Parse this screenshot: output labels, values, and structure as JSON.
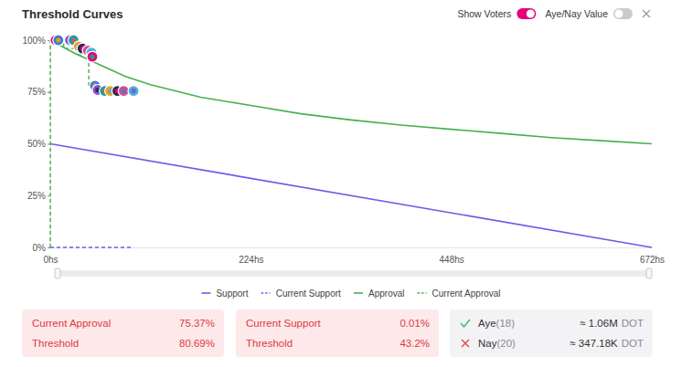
{
  "chart_data": {
    "type": "line",
    "title": "Threshold Curves",
    "xlim": [
      0,
      672
    ],
    "ylim": [
      0,
      100
    ],
    "xticks": [
      {
        "value": 0,
        "label": "0hs"
      },
      {
        "value": 224,
        "label": "224hs"
      },
      {
        "value": 448,
        "label": "448hs"
      },
      {
        "value": 672,
        "label": "672hs"
      }
    ],
    "yticks": [
      {
        "value": 0,
        "label": "0%"
      },
      {
        "value": 25,
        "label": "25%"
      },
      {
        "value": 50,
        "label": "50%"
      },
      {
        "value": 75,
        "label": "75%"
      },
      {
        "value": 100,
        "label": "100%"
      }
    ],
    "grid": false,
    "legend": "bottom",
    "series": [
      {
        "name": "Support",
        "color": "#6b5ce7",
        "line_style": "solid",
        "x": [
          0,
          672
        ],
        "values": [
          50,
          0
        ]
      },
      {
        "name": "Current Support",
        "color": "#6b5ce7",
        "line_style": "dashed",
        "x": [
          0,
          93
        ],
        "values": [
          0.01,
          0.01
        ]
      },
      {
        "name": "Approval",
        "color": "#46b04f",
        "line_style": "solid",
        "x": [
          0,
          28,
          56,
          84,
          112,
          168,
          224,
          280,
          336,
          392,
          448,
          504,
          560,
          616,
          672
        ],
        "values": [
          100,
          93.5,
          88,
          82.5,
          78.5,
          72.5,
          68.5,
          64.5,
          61.5,
          59,
          57,
          55,
          53,
          51.5,
          50
        ]
      },
      {
        "name": "Current Approval",
        "color": "#46b04f",
        "line_style": "dashed",
        "x": [
          0,
          0,
          15,
          15,
          30,
          30,
          43,
          43,
          93
        ],
        "values": [
          0,
          100,
          100,
          96,
          96,
          93,
          93,
          78,
          75.37
        ]
      },
      {
        "type": "scatter",
        "marker": "circle",
        "x": [
          6,
          9,
          22,
          26,
          32,
          36,
          42,
          46,
          47,
          50,
          53,
          61,
          67,
          75,
          82,
          93
        ],
        "values": [
          100,
          100,
          100,
          100,
          97,
          96,
          95,
          94,
          92,
          78,
          76,
          75.5,
          75.5,
          75.5,
          75.5,
          75.5
        ]
      }
    ]
  },
  "controls": [
    {
      "label": "Show Voters",
      "checked": true
    },
    {
      "label": "Aye/Nay Value",
      "checked": false
    }
  ],
  "summary": [
    {
      "rows": [
        {
          "label": "Current Approval",
          "value": "75.37%"
        },
        {
          "label": "Threshold",
          "value": "80.69%"
        }
      ]
    },
    {
      "rows": [
        {
          "label": "Current Support",
          "value": "0.01%"
        },
        {
          "label": "Threshold",
          "value": "43.2%"
        }
      ]
    },
    {
      "rows": [
        {
          "label": "Aye",
          "count": "(18)",
          "value": "≈ 1.06M",
          "unit": "DOT"
        },
        {
          "label": "Nay",
          "count": "(20)",
          "value": "≈ 347.18K",
          "unit": "DOT"
        }
      ]
    }
  ]
}
